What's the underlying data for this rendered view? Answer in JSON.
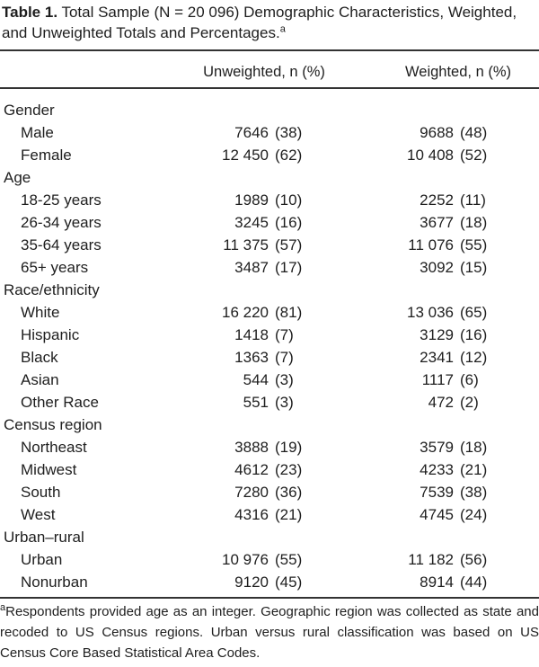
{
  "colors": {
    "background": "#ffffff",
    "text": "#1e1e1e",
    "rule": "#333333"
  },
  "table": {
    "title": {
      "label": "Table 1.",
      "text": " Total Sample (N = 20 096) Demographic Characteristics, Weighted, and Unweighted Totals and Percentages.",
      "footnote_marker": "a"
    },
    "columns": [
      "Unweighted, n (%)",
      "Weighted, n (%)"
    ],
    "sections": [
      {
        "label": "Gender",
        "rows": [
          {
            "label": "Male",
            "un": "7646",
            "upct": "(38)",
            "wn": "9688",
            "wpct": "(48)"
          },
          {
            "label": "Female",
            "un": "12 450",
            "upct": "(62)",
            "wn": "10 408",
            "wpct": "(52)"
          }
        ]
      },
      {
        "label": "Age",
        "rows": [
          {
            "label": "18-25 years",
            "un": "1989",
            "upct": "(10)",
            "wn": "2252",
            "wpct": "(11)"
          },
          {
            "label": "26-34 years",
            "un": "3245",
            "upct": "(16)",
            "wn": "3677",
            "wpct": "(18)"
          },
          {
            "label": "35-64 years",
            "un": "11 375",
            "upct": "(57)",
            "wn": "11 076",
            "wpct": "(55)"
          },
          {
            "label": "65+ years",
            "un": "3487",
            "upct": "(17)",
            "wn": "3092",
            "wpct": "(15)"
          }
        ]
      },
      {
        "label": "Race/ethnicity",
        "rows": [
          {
            "label": "White",
            "un": "16 220",
            "upct": "(81)",
            "wn": "13 036",
            "wpct": "(65)"
          },
          {
            "label": "Hispanic",
            "un": "1418",
            "upct": "(7)",
            "wn": "3129",
            "wpct": "(16)"
          },
          {
            "label": "Black",
            "un": "1363",
            "upct": "(7)",
            "wn": "2341",
            "wpct": "(12)"
          },
          {
            "label": "Asian",
            "un": "544",
            "upct": "(3)",
            "wn": "1117",
            "wpct": "(6)"
          },
          {
            "label": "Other Race",
            "un": "551",
            "upct": "(3)",
            "wn": "472",
            "wpct": "(2)"
          }
        ]
      },
      {
        "label": "Census region",
        "rows": [
          {
            "label": "Northeast",
            "un": "3888",
            "upct": "(19)",
            "wn": "3579",
            "wpct": "(18)"
          },
          {
            "label": "Midwest",
            "un": "4612",
            "upct": "(23)",
            "wn": "4233",
            "wpct": "(21)"
          },
          {
            "label": "South",
            "un": "7280",
            "upct": "(36)",
            "wn": "7539",
            "wpct": "(38)"
          },
          {
            "label": "West",
            "un": "4316",
            "upct": "(21)",
            "wn": "4745",
            "wpct": "(24)"
          }
        ]
      },
      {
        "label": "Urban–rural",
        "rows": [
          {
            "label": "Urban",
            "un": "10 976",
            "upct": "(55)",
            "wn": "11 182",
            "wpct": "(56)"
          },
          {
            "label": "Nonurban",
            "un": "9120",
            "upct": "(45)",
            "wn": "8914",
            "wpct": "(44)"
          }
        ]
      }
    ],
    "footnote": {
      "marker": "a",
      "text": "Respondents provided age as an integer. Geographic region was collected as state and recoded to US Census regions. Urban versus rural classification was based on US Census Core Based Statistical Area Codes."
    }
  }
}
